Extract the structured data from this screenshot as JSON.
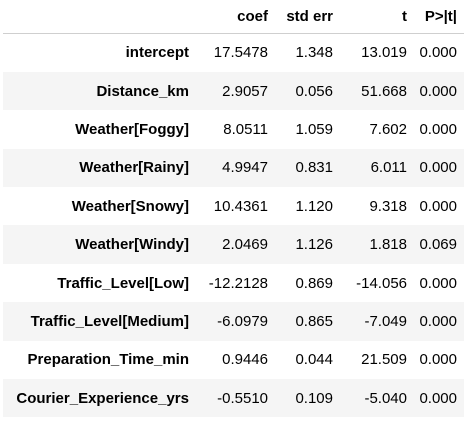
{
  "table": {
    "columns": [
      "",
      "coef",
      "std err",
      "t",
      "P>|t|"
    ],
    "rows": [
      {
        "label": "intercept",
        "coef": "17.5478",
        "std_err": "1.348",
        "t": "13.019",
        "p": "0.000"
      },
      {
        "label": "Distance_km",
        "coef": "2.9057",
        "std_err": "0.056",
        "t": "51.668",
        "p": "0.000"
      },
      {
        "label": "Weather[Foggy]",
        "coef": "8.0511",
        "std_err": "1.059",
        "t": "7.602",
        "p": "0.000"
      },
      {
        "label": "Weather[Rainy]",
        "coef": "4.9947",
        "std_err": "0.831",
        "t": "6.011",
        "p": "0.000"
      },
      {
        "label": "Weather[Snowy]",
        "coef": "10.4361",
        "std_err": "1.120",
        "t": "9.318",
        "p": "0.000"
      },
      {
        "label": "Weather[Windy]",
        "coef": "2.0469",
        "std_err": "1.126",
        "t": "1.818",
        "p": "0.069"
      },
      {
        "label": "Traffic_Level[Low]",
        "coef": "-12.2128",
        "std_err": "0.869",
        "t": "-14.056",
        "p": "0.000"
      },
      {
        "label": "Traffic_Level[Medium]",
        "coef": "-6.0979",
        "std_err": "0.865",
        "t": "-7.049",
        "p": "0.000"
      },
      {
        "label": "Preparation_Time_min",
        "coef": "0.9446",
        "std_err": "0.044",
        "t": "21.509",
        "p": "0.000"
      },
      {
        "label": "Courier_Experience_yrs",
        "coef": "-0.5510",
        "std_err": "0.109",
        "t": "-5.040",
        "p": "0.000"
      }
    ]
  },
  "colors": {
    "stripe": "#f5f5f5",
    "header_rule": "#cfcfcf",
    "text": "#000000"
  }
}
